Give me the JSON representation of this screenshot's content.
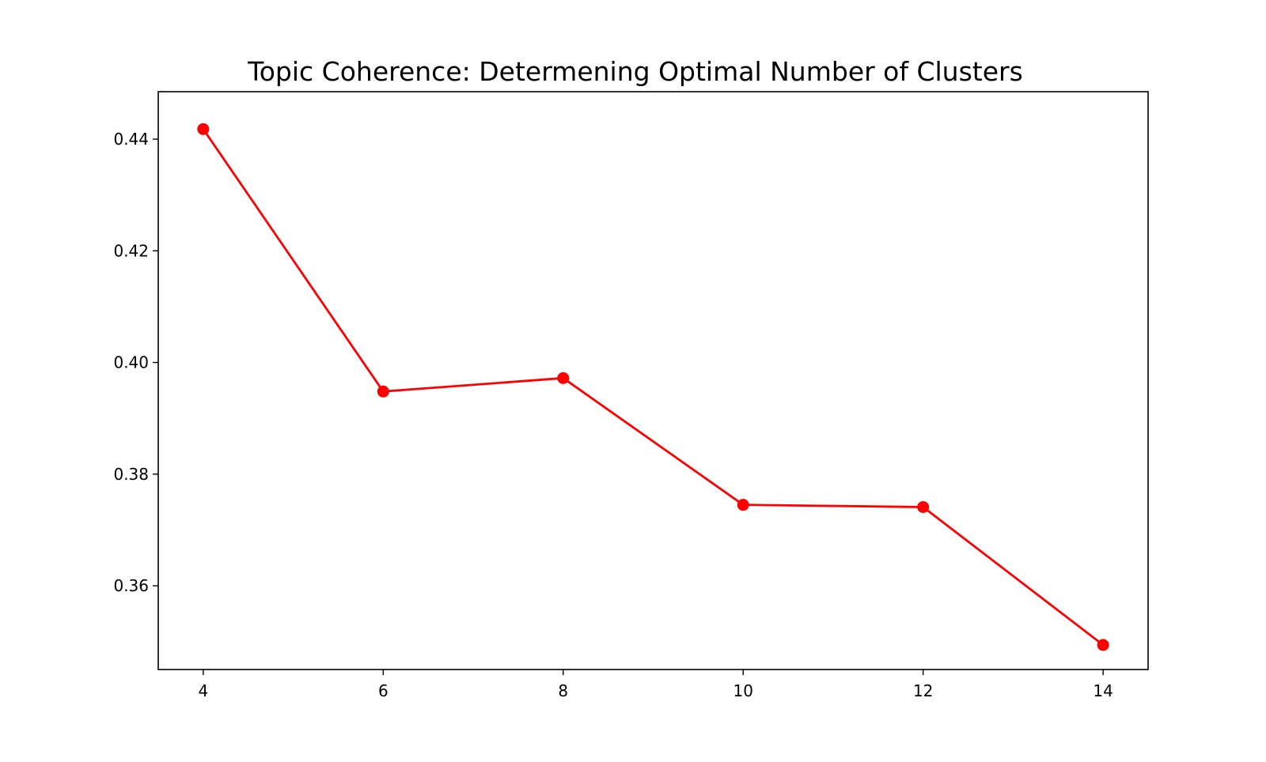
{
  "chart_data": {
    "type": "line",
    "title": "Topic Coherence: Determening Optimal Number of Clusters",
    "xlabel": "",
    "ylabel": "",
    "x": [
      4,
      6,
      8,
      10,
      12,
      14
    ],
    "series": [
      {
        "values": [
          0.4418,
          0.3948,
          0.3972,
          0.3745,
          0.3741,
          0.3494
        ],
        "color": "#ff0000",
        "marker": "circle"
      }
    ],
    "xlim": [
      3.5,
      14.5
    ],
    "ylim": [
      0.345,
      0.4485
    ],
    "x_ticks": [
      4,
      6,
      8,
      10,
      12,
      14
    ],
    "x_tick_labels": [
      "4",
      "6",
      "8",
      "10",
      "12",
      "14"
    ],
    "y_ticks": [
      0.36,
      0.38,
      0.4,
      0.42,
      0.44
    ],
    "y_tick_labels": [
      "0.36",
      "0.38",
      "0.40",
      "0.42",
      "0.44"
    ],
    "grid": false,
    "legend": "none"
  }
}
